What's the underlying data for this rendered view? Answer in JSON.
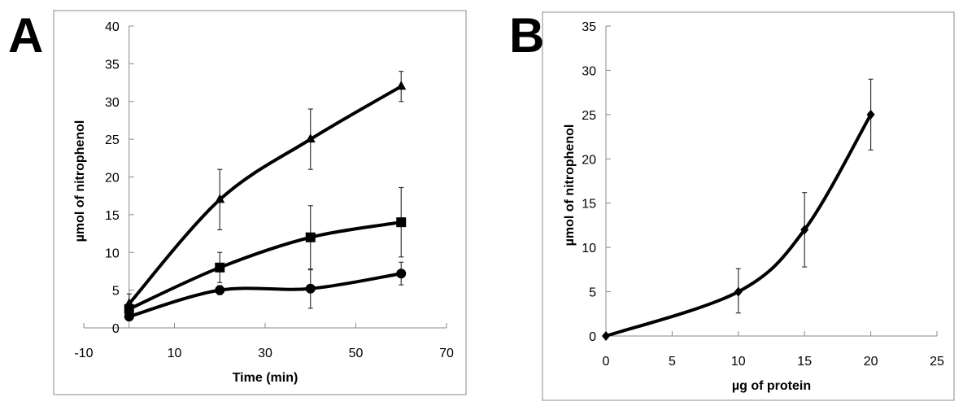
{
  "chart_data": [
    {
      "panel_label": "A",
      "type": "line",
      "xlabel": "Time (min)",
      "ylabel": "µmol of nitrophenol",
      "xlim": [
        -10,
        70
      ],
      "ylim": [
        0,
        40
      ],
      "xticks": [
        -10,
        10,
        30,
        50,
        70
      ],
      "yticks": [
        0,
        5,
        10,
        15,
        20,
        25,
        30,
        35,
        40
      ],
      "grid": false,
      "smooth": true,
      "series": [
        {
          "marker": "triangle",
          "x": [
            0,
            20,
            40,
            60
          ],
          "y": [
            3.2,
            17,
            25,
            32
          ],
          "err_low": [
            3.2,
            13,
            21,
            30
          ],
          "err_high": [
            4.5,
            21,
            29,
            34
          ]
        },
        {
          "marker": "square",
          "x": [
            0,
            20,
            40,
            60
          ],
          "y": [
            2.5,
            8,
            12,
            14
          ],
          "err_low": [
            2.5,
            6,
            7.8,
            9.4
          ],
          "err_high": [
            2.5,
            10,
            16.2,
            18.6
          ]
        },
        {
          "marker": "circle",
          "x": [
            0,
            20,
            40,
            60
          ],
          "y": [
            1.5,
            5,
            5.2,
            7.2
          ],
          "err_low": [
            1.5,
            4.4,
            2.6,
            5.7
          ],
          "err_high": [
            1.5,
            5.6,
            7.7,
            8.7
          ]
        }
      ]
    },
    {
      "panel_label": "B",
      "type": "line",
      "xlabel": "µg of protein",
      "ylabel": "µmol of nitrophenol",
      "xlim": [
        0,
        25
      ],
      "ylim": [
        0,
        35
      ],
      "xticks": [
        0,
        5,
        10,
        15,
        20,
        25
      ],
      "yticks": [
        0,
        5,
        10,
        15,
        20,
        25,
        30,
        35
      ],
      "grid": false,
      "smooth": true,
      "series": [
        {
          "marker": "diamond",
          "x": [
            0,
            10,
            15,
            20
          ],
          "y": [
            0,
            5,
            12,
            25
          ],
          "err_low": [
            0,
            2.6,
            7.8,
            21
          ],
          "err_high": [
            0,
            7.6,
            16.2,
            29
          ]
        }
      ]
    }
  ]
}
